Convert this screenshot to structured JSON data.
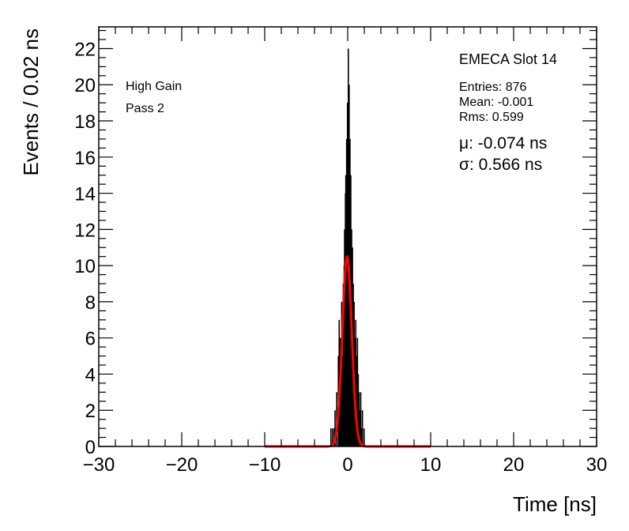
{
  "chart_data": {
    "type": "bar",
    "xlabel": "Time [ns]",
    "ylabel": "Events / 0.02 ns",
    "xlim": [
      -30,
      30
    ],
    "ylim": [
      0,
      23.2
    ],
    "x_ticks": [
      -30,
      -20,
      -10,
      0,
      10,
      20,
      30
    ],
    "x_tick_labels": [
      "−30",
      "−20",
      "−10",
      "0",
      "10",
      "20",
      "30"
    ],
    "y_ticks": [
      0,
      2,
      4,
      6,
      8,
      10,
      12,
      14,
      16,
      18,
      20,
      22
    ],
    "y_tick_labels": [
      "0",
      "2",
      "4",
      "6",
      "8",
      "10",
      "12",
      "14",
      "16",
      "18",
      "20",
      "22"
    ],
    "grid": false,
    "legend": "none",
    "histogram": {
      "bin_width": 0.02,
      "color": "#000000",
      "bins": [
        [
          -2.1,
          1
        ],
        [
          -1.9,
          1
        ],
        [
          -1.7,
          1
        ],
        [
          -1.6,
          2
        ],
        [
          -1.4,
          3
        ],
        [
          -1.2,
          5
        ],
        [
          -1.1,
          7
        ],
        [
          -1.0,
          6
        ],
        [
          -0.9,
          6
        ],
        [
          -0.8,
          8
        ],
        [
          -0.7,
          5
        ],
        [
          -0.6,
          9
        ],
        [
          -0.5,
          10
        ],
        [
          -0.45,
          12
        ],
        [
          -0.4,
          8
        ],
        [
          -0.35,
          14
        ],
        [
          -0.3,
          15
        ],
        [
          -0.25,
          11
        ],
        [
          -0.2,
          17
        ],
        [
          -0.15,
          13
        ],
        [
          -0.1,
          19
        ],
        [
          -0.05,
          16
        ],
        [
          0.0,
          22
        ],
        [
          0.05,
          18
        ],
        [
          0.1,
          20
        ],
        [
          0.15,
          14
        ],
        [
          0.2,
          17
        ],
        [
          0.25,
          12
        ],
        [
          0.3,
          15
        ],
        [
          0.35,
          10
        ],
        [
          0.4,
          12
        ],
        [
          0.45,
          9
        ],
        [
          0.5,
          11
        ],
        [
          0.55,
          7
        ],
        [
          0.6,
          9
        ],
        [
          0.7,
          8
        ],
        [
          0.8,
          6
        ],
        [
          0.9,
          7
        ],
        [
          1.0,
          5
        ],
        [
          1.1,
          6
        ],
        [
          1.2,
          4
        ],
        [
          1.3,
          3
        ],
        [
          1.4,
          2
        ],
        [
          1.5,
          3
        ],
        [
          1.6,
          1
        ],
        [
          1.7,
          2
        ],
        [
          1.9,
          1
        ]
      ]
    },
    "fit": {
      "function": "gaussian",
      "mean": -0.074,
      "sigma": 0.566,
      "amplitude": 10.5,
      "range": [
        -10,
        10
      ],
      "color": "#ff0000"
    },
    "annotations": {
      "gain": "High Gain",
      "pass": "Pass 2",
      "slot_title": "EMECA Slot 14",
      "entries": "Entries: 876",
      "mean": "Mean: -0.001",
      "rms": "Rms: 0.599",
      "mu": "μ: -0.074 ns",
      "sigma": "σ: 0.566 ns"
    }
  }
}
